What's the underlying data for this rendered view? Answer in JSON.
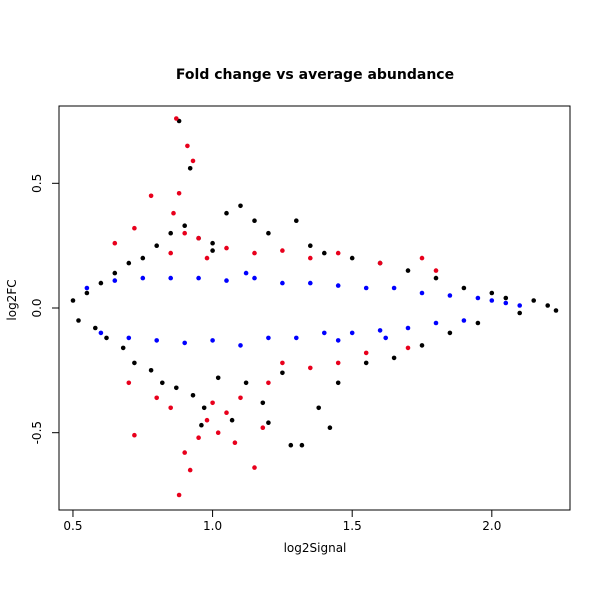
{
  "chart_data": {
    "type": "scatter",
    "title": "Fold change vs average abundance",
    "xlabel": "log2Signal",
    "ylabel": "log2FC",
    "xlim": [
      0.45,
      2.28
    ],
    "ylim": [
      -0.81,
      0.81
    ],
    "x_ticks": [
      0.5,
      1.0,
      1.5,
      2.0
    ],
    "x_tick_labels": [
      "0.5",
      "1.0",
      "1.5",
      "2.0"
    ],
    "y_ticks": [
      -0.5,
      0.0,
      0.5
    ],
    "y_tick_labels": [
      "-0.5",
      "0.0",
      "0.5"
    ],
    "grid": false,
    "series": [
      {
        "color": "#000000",
        "approximate": true,
        "points": [
          [
            0.5,
            0.03
          ],
          [
            0.52,
            -0.05
          ],
          [
            0.55,
            0.06
          ],
          [
            0.58,
            -0.08
          ],
          [
            0.6,
            0.1
          ],
          [
            0.62,
            -0.12
          ],
          [
            0.65,
            0.14
          ],
          [
            0.68,
            -0.16
          ],
          [
            0.7,
            0.18
          ],
          [
            0.72,
            -0.22
          ],
          [
            0.75,
            0.2
          ],
          [
            0.78,
            -0.25
          ],
          [
            0.8,
            0.25
          ],
          [
            0.82,
            -0.3
          ],
          [
            0.85,
            0.3
          ],
          [
            0.87,
            -0.32
          ],
          [
            0.9,
            0.33
          ],
          [
            0.92,
            0.56
          ],
          [
            0.93,
            -0.35
          ],
          [
            0.95,
            0.28
          ],
          [
            0.97,
            -0.4
          ],
          [
            1.0,
            0.26
          ],
          [
            1.02,
            -0.28
          ],
          [
            1.05,
            0.38
          ],
          [
            1.07,
            -0.45
          ],
          [
            1.1,
            0.41
          ],
          [
            1.12,
            -0.3
          ],
          [
            1.15,
            0.35
          ],
          [
            1.18,
            -0.38
          ],
          [
            1.2,
            0.3
          ],
          [
            1.25,
            -0.26
          ],
          [
            1.3,
            0.35
          ],
          [
            1.32,
            -0.55
          ],
          [
            1.35,
            0.25
          ],
          [
            1.38,
            -0.4
          ],
          [
            1.4,
            0.22
          ],
          [
            1.45,
            -0.3
          ],
          [
            1.5,
            0.2
          ],
          [
            1.55,
            -0.22
          ],
          [
            1.6,
            0.18
          ],
          [
            1.65,
            -0.2
          ],
          [
            1.7,
            0.15
          ],
          [
            1.75,
            -0.15
          ],
          [
            1.8,
            0.12
          ],
          [
            1.85,
            -0.1
          ],
          [
            1.9,
            0.08
          ],
          [
            1.95,
            -0.06
          ],
          [
            2.0,
            0.06
          ],
          [
            2.05,
            0.04
          ],
          [
            2.1,
            -0.02
          ],
          [
            2.15,
            0.03
          ],
          [
            2.2,
            0.01
          ],
          [
            2.23,
            -0.01
          ],
          [
            0.88,
            0.75
          ],
          [
            1.0,
            0.23
          ],
          [
            0.96,
            -0.47
          ],
          [
            1.2,
            -0.46
          ],
          [
            1.28,
            -0.55
          ],
          [
            1.42,
            -0.48
          ]
        ]
      },
      {
        "color": "#0000ff",
        "approximate": true,
        "points": [
          [
            0.55,
            0.08
          ],
          [
            0.6,
            -0.1
          ],
          [
            0.65,
            0.11
          ],
          [
            0.7,
            -0.12
          ],
          [
            0.75,
            0.12
          ],
          [
            0.8,
            -0.13
          ],
          [
            0.85,
            0.12
          ],
          [
            0.9,
            -0.14
          ],
          [
            0.95,
            0.12
          ],
          [
            1.0,
            -0.13
          ],
          [
            1.05,
            0.11
          ],
          [
            1.1,
            -0.15
          ],
          [
            1.15,
            0.12
          ],
          [
            1.2,
            -0.12
          ],
          [
            1.25,
            0.1
          ],
          [
            1.3,
            -0.12
          ],
          [
            1.35,
            0.1
          ],
          [
            1.4,
            -0.1
          ],
          [
            1.45,
            0.09
          ],
          [
            1.5,
            -0.1
          ],
          [
            1.55,
            0.08
          ],
          [
            1.6,
            -0.09
          ],
          [
            1.65,
            0.08
          ],
          [
            1.7,
            -0.08
          ],
          [
            1.75,
            0.06
          ],
          [
            1.8,
            -0.06
          ],
          [
            1.85,
            0.05
          ],
          [
            1.9,
            -0.05
          ],
          [
            1.95,
            0.04
          ],
          [
            2.0,
            0.03
          ],
          [
            2.05,
            0.02
          ],
          [
            2.1,
            0.01
          ],
          [
            1.12,
            0.14
          ],
          [
            1.45,
            -0.13
          ],
          [
            1.62,
            -0.12
          ]
        ]
      },
      {
        "color": "#e8001c",
        "approximate": true,
        "points": [
          [
            0.87,
            0.76
          ],
          [
            0.91,
            0.65
          ],
          [
            0.93,
            0.59
          ],
          [
            0.78,
            0.45
          ],
          [
            0.88,
            0.46
          ],
          [
            0.86,
            0.38
          ],
          [
            0.9,
            0.3
          ],
          [
            0.95,
            0.28
          ],
          [
            0.72,
            0.32
          ],
          [
            0.65,
            0.26
          ],
          [
            0.85,
            0.22
          ],
          [
            0.98,
            0.2
          ],
          [
            1.05,
            0.24
          ],
          [
            1.15,
            0.22
          ],
          [
            1.25,
            0.23
          ],
          [
            1.35,
            0.2
          ],
          [
            1.45,
            0.22
          ],
          [
            1.6,
            0.18
          ],
          [
            1.75,
            0.2
          ],
          [
            1.8,
            0.15
          ],
          [
            0.7,
            -0.3
          ],
          [
            0.72,
            -0.51
          ],
          [
            0.8,
            -0.36
          ],
          [
            0.85,
            -0.4
          ],
          [
            0.88,
            -0.75
          ],
          [
            0.9,
            -0.58
          ],
          [
            0.92,
            -0.65
          ],
          [
            0.95,
            -0.52
          ],
          [
            0.98,
            -0.45
          ],
          [
            1.0,
            -0.38
          ],
          [
            1.02,
            -0.5
          ],
          [
            1.05,
            -0.42
          ],
          [
            1.08,
            -0.54
          ],
          [
            1.1,
            -0.36
          ],
          [
            1.15,
            -0.64
          ],
          [
            1.18,
            -0.48
          ],
          [
            1.2,
            -0.3
          ],
          [
            1.25,
            -0.22
          ],
          [
            1.35,
            -0.24
          ],
          [
            1.45,
            -0.22
          ],
          [
            1.55,
            -0.18
          ],
          [
            1.7,
            -0.16
          ]
        ]
      }
    ]
  }
}
